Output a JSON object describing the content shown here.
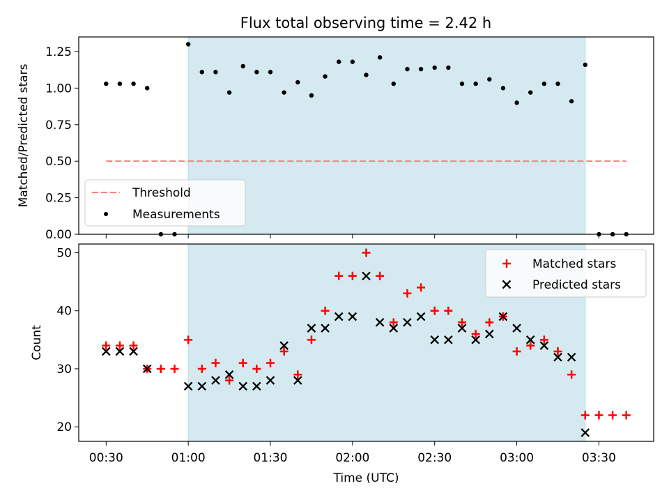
{
  "title": "Flux total observing time = 2.42 h",
  "colors": {
    "shade": "#d4eaf0",
    "threshold": "#ff7f7f",
    "measurement": "#000000",
    "matched": "#ff0000",
    "predicted": "#000000"
  },
  "chart_data": [
    {
      "type": "scatter",
      "ylabel": "Matched/Predicted stars",
      "ylim": [
        0.0,
        1.35
      ],
      "yticks": [
        0.0,
        0.25,
        0.5,
        0.75,
        1.0,
        1.25
      ],
      "yticklabels": [
        "0.00",
        "0.25",
        "0.50",
        "0.75",
        "1.00",
        "1.25"
      ],
      "shaded_span": [
        "01:00",
        "03:25"
      ],
      "legend_placement": "lower-left",
      "threshold": {
        "name": "Threshold",
        "value": 0.5,
        "x_start": "00:30",
        "x_end": "03:40"
      },
      "measurements": {
        "name": "Measurements",
        "x": [
          "00:30",
          "00:35",
          "00:40",
          "00:45",
          "00:50",
          "00:55",
          "01:00",
          "01:05",
          "01:10",
          "01:15",
          "01:20",
          "01:25",
          "01:30",
          "01:35",
          "01:40",
          "01:45",
          "01:50",
          "01:55",
          "02:00",
          "02:05",
          "02:10",
          "02:15",
          "02:20",
          "02:25",
          "02:30",
          "02:35",
          "02:40",
          "02:45",
          "02:50",
          "02:55",
          "03:00",
          "03:05",
          "03:10",
          "03:15",
          "03:20",
          "03:25",
          "03:30",
          "03:35",
          "03:40"
        ],
        "y": [
          1.03,
          1.03,
          1.03,
          1.0,
          0.0,
          0.0,
          1.3,
          1.11,
          1.11,
          0.97,
          1.15,
          1.11,
          1.11,
          0.97,
          1.04,
          0.95,
          1.08,
          1.18,
          1.18,
          1.09,
          1.21,
          1.03,
          1.13,
          1.13,
          1.14,
          1.14,
          1.03,
          1.03,
          1.06,
          1.0,
          0.9,
          0.97,
          1.03,
          1.03,
          0.91,
          1.16,
          0.0,
          0.0,
          0.0
        ]
      }
    },
    {
      "type": "scatter",
      "xlabel": "Time (UTC)",
      "ylabel": "Count",
      "ylim": [
        17.5,
        51.5
      ],
      "yticks": [
        20,
        30,
        40,
        50
      ],
      "xticks": [
        "00:30",
        "01:00",
        "01:30",
        "02:00",
        "02:30",
        "03:00",
        "03:30"
      ],
      "shaded_span": [
        "01:00",
        "03:25"
      ],
      "legend_placement": "upper-right",
      "series": [
        {
          "name": "Matched stars",
          "marker": "+",
          "x": [
            "00:30",
            "00:35",
            "00:40",
            "00:45",
            "00:50",
            "00:55",
            "01:00",
            "01:05",
            "01:10",
            "01:15",
            "01:20",
            "01:25",
            "01:30",
            "01:35",
            "01:40",
            "01:45",
            "01:50",
            "01:55",
            "02:00",
            "02:05",
            "02:10",
            "02:15",
            "02:20",
            "02:25",
            "02:30",
            "02:35",
            "02:40",
            "02:45",
            "02:50",
            "02:55",
            "03:00",
            "03:05",
            "03:10",
            "03:15",
            "03:20",
            "03:25",
            "03:30",
            "03:35",
            "03:40"
          ],
          "y": [
            34,
            34,
            34,
            30,
            30,
            30,
            35,
            30,
            31,
            28,
            31,
            30,
            31,
            33,
            29,
            35,
            40,
            46,
            46,
            50,
            46,
            38,
            43,
            44,
            40,
            40,
            38,
            36,
            38,
            39,
            33,
            34,
            35,
            33,
            29,
            22,
            22,
            22,
            22
          ]
        },
        {
          "name": "Predicted stars",
          "marker": "x",
          "x": [
            "00:30",
            "00:35",
            "00:40",
            "00:45",
            "01:00",
            "01:05",
            "01:10",
            "01:15",
            "01:20",
            "01:25",
            "01:30",
            "01:35",
            "01:40",
            "01:45",
            "01:50",
            "01:55",
            "02:00",
            "02:05",
            "02:10",
            "02:15",
            "02:20",
            "02:25",
            "02:30",
            "02:35",
            "02:40",
            "02:45",
            "02:50",
            "02:55",
            "03:00",
            "03:05",
            "03:10",
            "03:15",
            "03:20",
            "03:25"
          ],
          "y": [
            33,
            33,
            33,
            30,
            27,
            27,
            28,
            29,
            27,
            27,
            28,
            34,
            28,
            37,
            37,
            39,
            39,
            46,
            38,
            37,
            38,
            39,
            35,
            35,
            37,
            35,
            36,
            39,
            37,
            35,
            34,
            32,
            32,
            19
          ]
        }
      ]
    }
  ]
}
